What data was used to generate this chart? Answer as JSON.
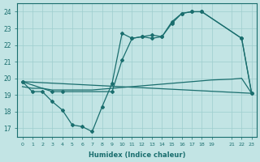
{
  "xlabel": "Humidex (Indice chaleur)",
  "background_color": "#c2e4e4",
  "grid_color": "#9ecece",
  "line_color": "#1a6e6e",
  "xlim": [
    -0.5,
    23.5
  ],
  "ylim": [
    16.5,
    24.5
  ],
  "xtick_positions": [
    0,
    1,
    2,
    3,
    4,
    5,
    6,
    7,
    8,
    9,
    10,
    11,
    12,
    13,
    14,
    15,
    16,
    17,
    18,
    19,
    21,
    22,
    23
  ],
  "xtick_labels": [
    "0",
    "1",
    "2",
    "3",
    "4",
    "5",
    "6",
    "7",
    "8",
    "9",
    "10",
    "11",
    "12",
    "13",
    "14",
    "15",
    "16",
    "17",
    "18",
    "19",
    "21",
    "22",
    "23"
  ],
  "ytick_positions": [
    17,
    18,
    19,
    20,
    21,
    22,
    23,
    24
  ],
  "ytick_labels": [
    "17",
    "18",
    "19",
    "20",
    "21",
    "22",
    "23",
    "24"
  ],
  "line1_x": [
    0,
    1,
    2,
    3,
    4,
    5,
    6,
    7,
    8,
    9,
    10,
    11,
    12,
    13,
    14,
    15,
    16,
    17,
    18,
    22,
    23
  ],
  "line1_y": [
    19.8,
    19.2,
    19.2,
    18.6,
    18.1,
    17.2,
    17.1,
    16.8,
    18.3,
    19.7,
    22.7,
    22.4,
    22.5,
    22.6,
    22.5,
    23.4,
    23.9,
    24.0,
    24.0,
    22.4,
    19.1
  ],
  "line2_x": [
    0,
    3,
    4,
    9,
    10,
    11,
    12,
    13,
    14,
    15,
    16,
    17,
    18,
    22,
    23
  ],
  "line2_y": [
    19.8,
    19.2,
    19.2,
    19.2,
    21.1,
    22.4,
    22.5,
    22.4,
    22.5,
    23.3,
    23.9,
    24.0,
    24.0,
    22.4,
    19.1
  ],
  "line3_x": [
    0,
    1,
    2,
    3,
    4,
    5,
    6,
    7,
    8,
    9,
    10,
    11,
    12,
    13,
    14,
    15,
    16,
    17,
    18,
    19,
    21,
    22,
    23
  ],
  "line3_y": [
    19.5,
    19.4,
    19.4,
    19.3,
    19.3,
    19.3,
    19.3,
    19.3,
    19.35,
    19.4,
    19.45,
    19.5,
    19.55,
    19.6,
    19.65,
    19.7,
    19.75,
    19.8,
    19.85,
    19.9,
    19.95,
    20.0,
    19.1
  ],
  "line4_x": [
    0,
    23
  ],
  "line4_y": [
    19.8,
    19.1
  ]
}
